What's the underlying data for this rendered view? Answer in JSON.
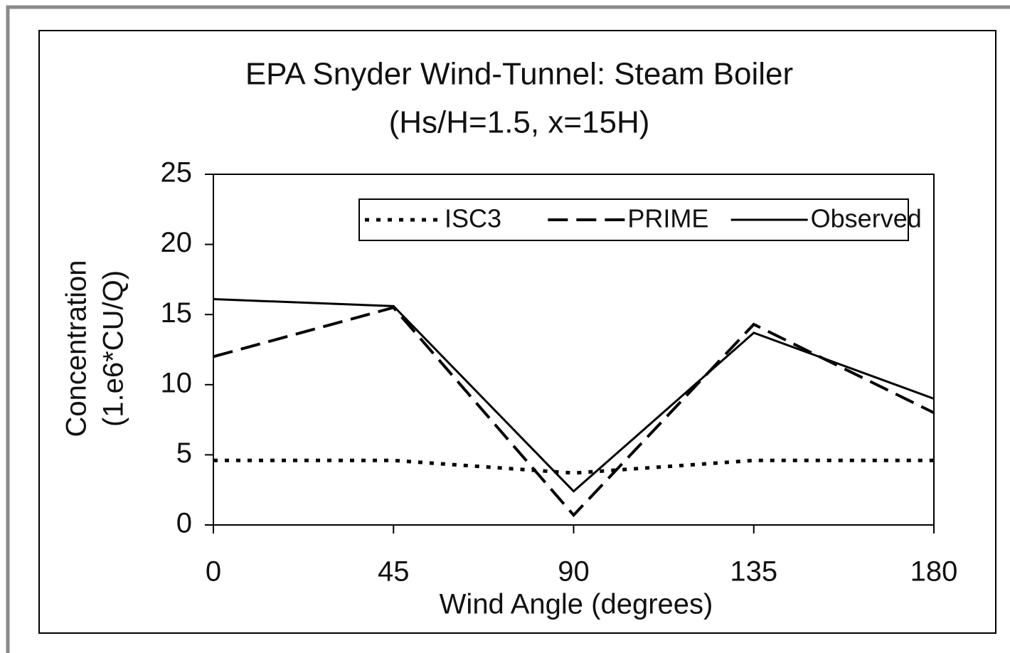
{
  "chart_data": {
    "type": "line",
    "title": "EPA Snyder Wind-Tunnel: Steam Boiler",
    "subtitle": "(Hs/H=1.5, x=15H)",
    "x_label": "Wind Angle (degrees)",
    "y_label": [
      "Concentration",
      "(1.e6*CU/Q)"
    ],
    "x": [
      0,
      45,
      90,
      135,
      180
    ],
    "xlim": [
      0,
      180
    ],
    "xticks": [
      0,
      45,
      90,
      135,
      180
    ],
    "ylim": [
      0,
      25
    ],
    "yticks": [
      0,
      5,
      10,
      15,
      20,
      25
    ],
    "legend": "top-right",
    "series": [
      {
        "name": "ISC3",
        "color": "#000000",
        "dash": "dotted",
        "values": [
          4.6,
          4.6,
          3.7,
          4.6,
          4.6
        ]
      },
      {
        "name": "PRIME",
        "color": "#000000",
        "dash": "dashed",
        "values": [
          12,
          15.5,
          0.7,
          14.3,
          8.0
        ]
      },
      {
        "name": "Observed",
        "color": "#000000",
        "dash": "solid",
        "values": [
          16.1,
          15.6,
          2.4,
          13.7,
          9.0
        ]
      }
    ]
  }
}
